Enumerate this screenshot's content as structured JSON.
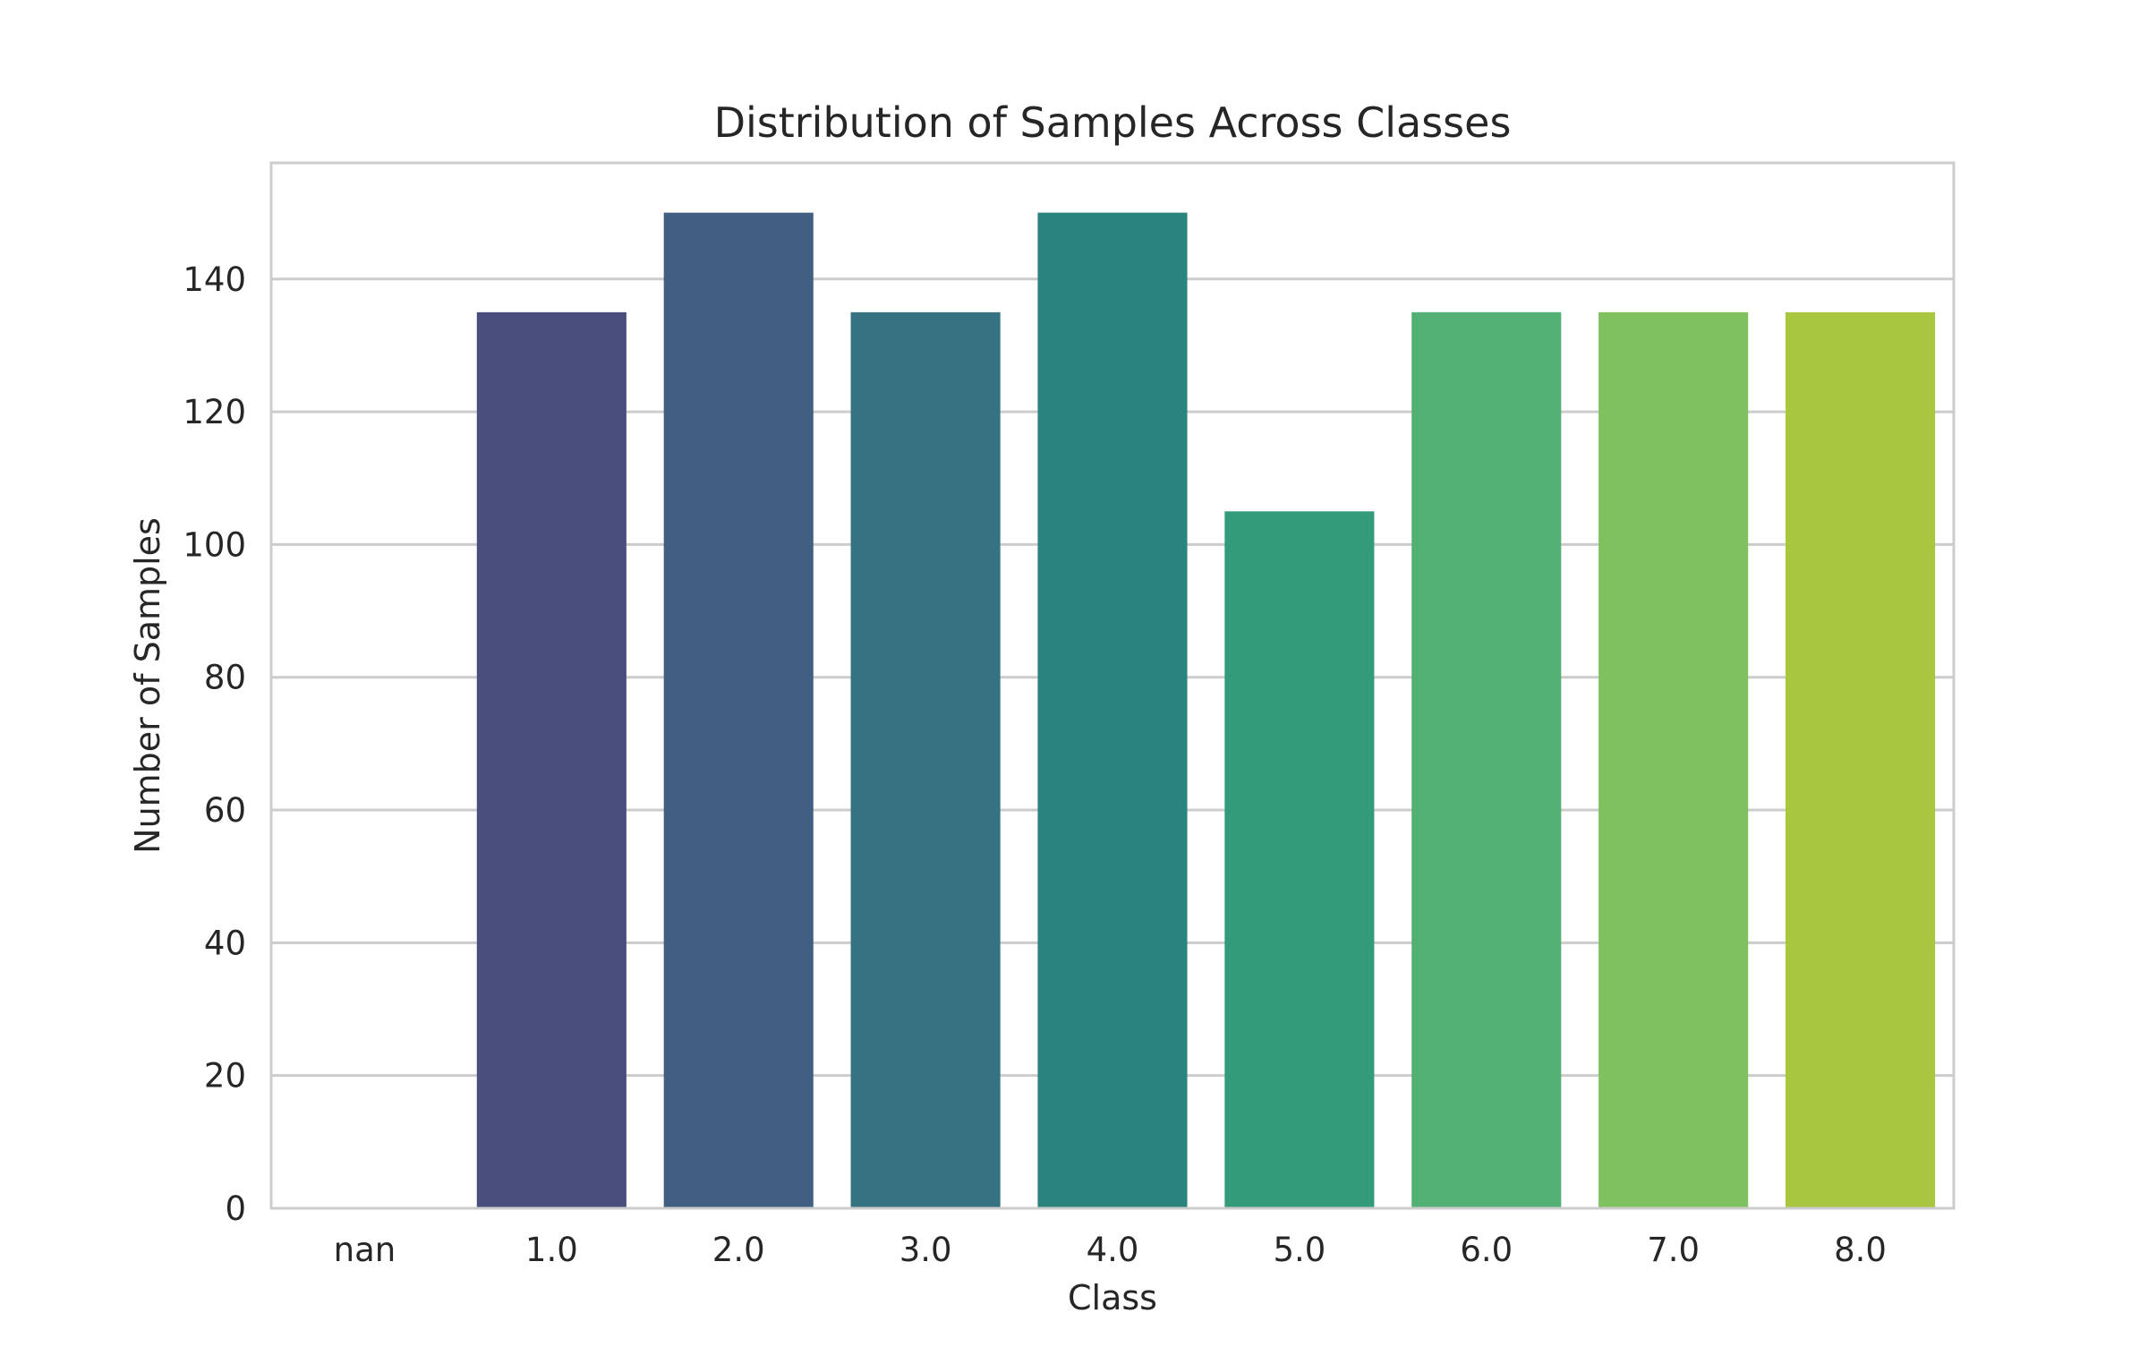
{
  "chart_data": {
    "type": "bar",
    "title": "Distribution of Samples Across Classes",
    "xlabel": "Class",
    "ylabel": "Number of Samples",
    "categories": [
      "nan",
      "1.0",
      "2.0",
      "3.0",
      "4.0",
      "5.0",
      "6.0",
      "7.0",
      "8.0"
    ],
    "values": [
      0,
      135,
      150,
      135,
      150,
      105,
      135,
      135,
      135
    ],
    "colors": [
      "#440154",
      "#4a4e7c",
      "#415f80",
      "#367280",
      "#2b837d",
      "#339a7a",
      "#53b075",
      "#80c15f",
      "#a9c63f"
    ],
    "ylim": [
      0,
      157.5
    ],
    "yticks": [
      0,
      20,
      40,
      60,
      80,
      100,
      120,
      140
    ],
    "grid": true,
    "grid_axis": "y",
    "legend": "none"
  }
}
